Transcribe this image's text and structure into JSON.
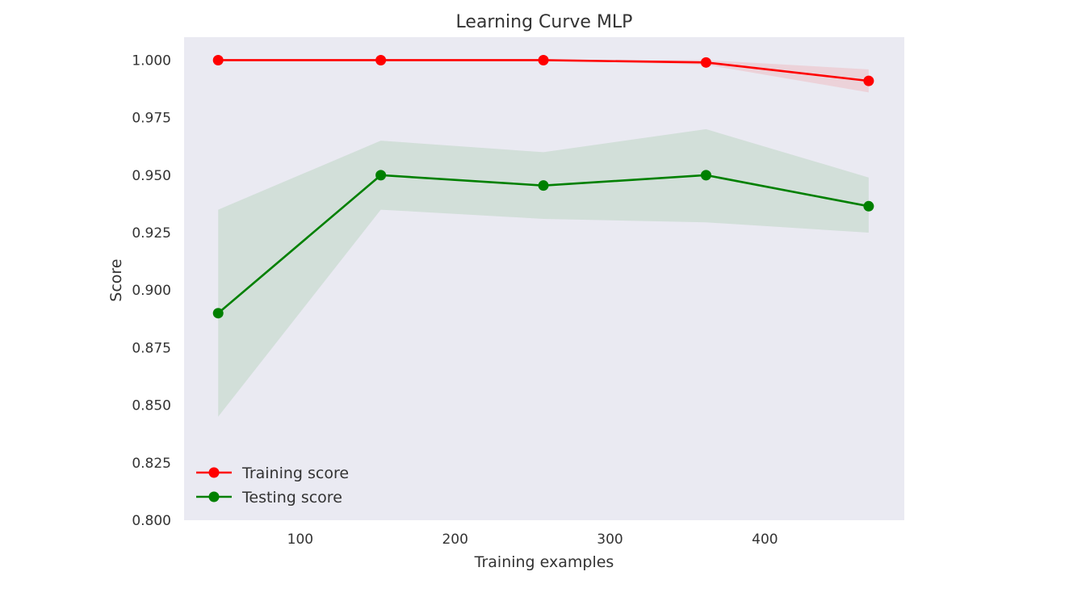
{
  "chart_data": {
    "type": "line",
    "title": "Learning Curve MLP",
    "xlabel": "Training examples",
    "ylabel": "Score",
    "xlim": [
      25,
      490
    ],
    "ylim": [
      0.8,
      1.01
    ],
    "xticks": [
      100,
      200,
      300,
      400
    ],
    "xtick_labels": [
      "100",
      "200",
      "300",
      "400"
    ],
    "yticks": [
      0.8,
      0.825,
      0.85,
      0.875,
      0.9,
      0.925,
      0.95,
      0.975,
      1.0
    ],
    "ytick_labels": [
      "0.800",
      "0.825",
      "0.850",
      "0.875",
      "0.900",
      "0.925",
      "0.950",
      "0.975",
      "1.000"
    ],
    "x": [
      47,
      152,
      257,
      362,
      467
    ],
    "grid": false,
    "legend_position": "lower-left",
    "series": [
      {
        "name": "Training score",
        "color": "#ff0000",
        "band_color": "#ff0000",
        "values": [
          1.0,
          1.0,
          1.0,
          0.999,
          0.991
        ],
        "band_lower": [
          1.0,
          1.0,
          1.0,
          0.998,
          0.986
        ],
        "band_upper": [
          1.0,
          1.0,
          1.0,
          1.0,
          0.996
        ]
      },
      {
        "name": "Testing score",
        "color": "#008000",
        "band_color": "#008000",
        "values": [
          0.89,
          0.95,
          0.9455,
          0.95,
          0.9365
        ],
        "band_lower": [
          0.845,
          0.935,
          0.931,
          0.9295,
          0.925
        ],
        "band_upper": [
          0.935,
          0.965,
          0.96,
          0.97,
          0.949
        ]
      }
    ]
  }
}
